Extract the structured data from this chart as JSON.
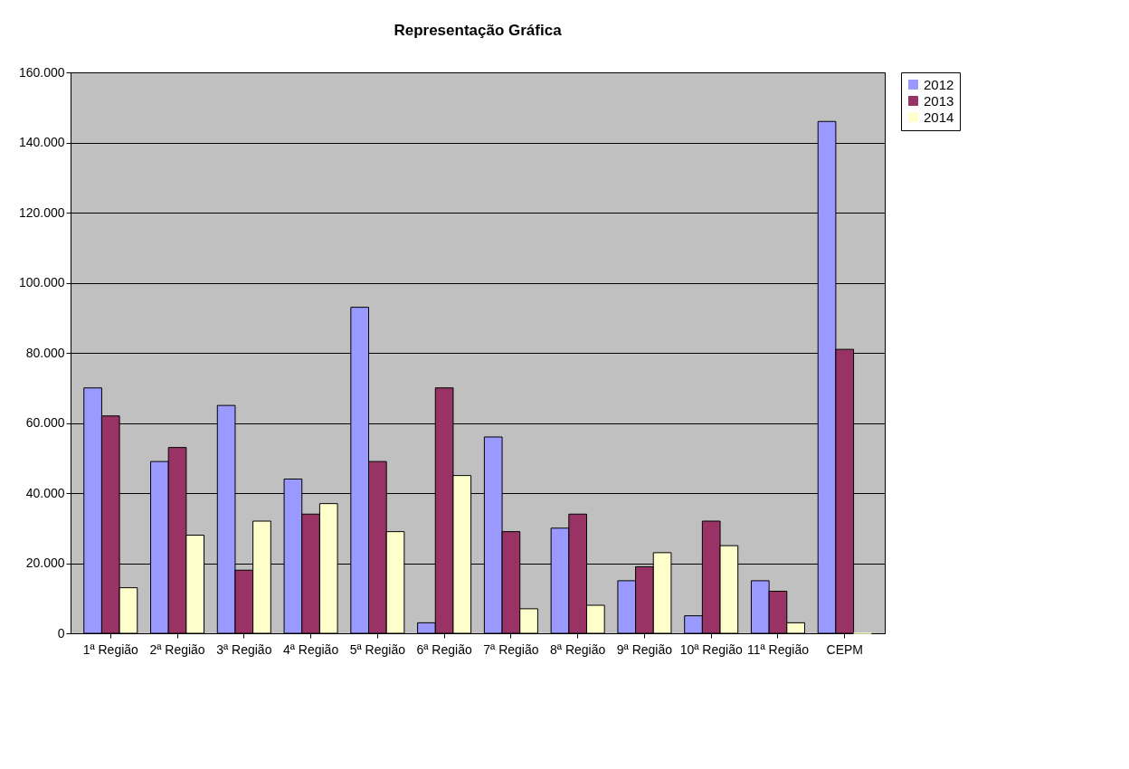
{
  "chart_data": {
    "type": "bar",
    "title": "Representação Gráfica",
    "categories": [
      "1ª Região",
      "2ª Região",
      "3ª Região",
      "4ª Região",
      "5ª Região",
      "6ª Região",
      "7ª Região",
      "8ª Região",
      "9ª Região",
      "10ª Região",
      "11ª Região",
      "CEPM"
    ],
    "series": [
      {
        "name": "2012",
        "color": "#9999ff",
        "values": [
          70000,
          49000,
          65000,
          44000,
          93000,
          3000,
          56000,
          30000,
          15000,
          5000,
          15000,
          146000
        ]
      },
      {
        "name": "2013",
        "color": "#993366",
        "values": [
          62000,
          53000,
          18000,
          34000,
          49000,
          70000,
          29000,
          34000,
          19000,
          32000,
          12000,
          81000
        ]
      },
      {
        "name": "2014",
        "color": "#ffffcc",
        "values": [
          13000,
          28000,
          32000,
          37000,
          29000,
          45000,
          7000,
          8000,
          23000,
          25000,
          3000,
          0
        ]
      }
    ],
    "ylim": [
      0,
      160000
    ],
    "yticks": [
      0,
      {
        "value": 20000,
        "label": "20.000"
      },
      {
        "value": 40000,
        "label": "40.000"
      },
      {
        "value": 60000,
        "label": "60.000"
      },
      {
        "value": 80000,
        "label": "80.000"
      },
      {
        "value": 100000,
        "label": "100.000"
      },
      {
        "value": 120000,
        "label": "120.000"
      },
      {
        "value": 140000,
        "label": "140.000"
      },
      {
        "value": 160000,
        "label": "160.000"
      }
    ],
    "grid": "y",
    "legend": "right"
  }
}
